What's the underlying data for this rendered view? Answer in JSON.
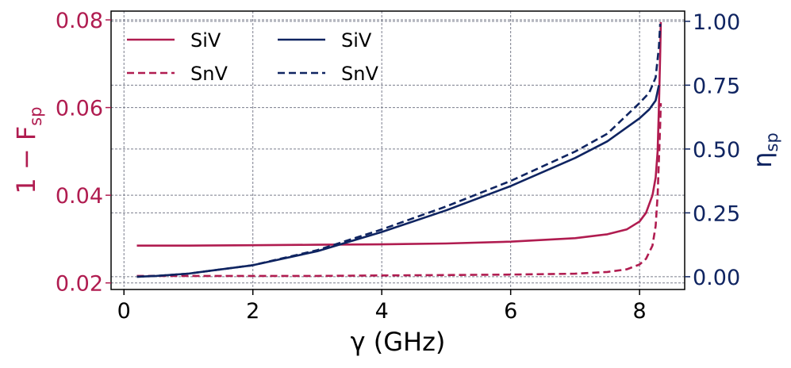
{
  "chart_data": {
    "type": "line",
    "xlabel": "γ (GHz)",
    "ylabel_left": "1 − F",
    "ylabel_left_sub": "sp",
    "ylabel_right": "η",
    "ylabel_right_sub": "sp",
    "xlim": [
      -0.2,
      8.7
    ],
    "ylim_left": [
      0.0185,
      0.082
    ],
    "ylim_right": [
      -0.05,
      1.04
    ],
    "xticks": [
      "0",
      "2",
      "4",
      "6",
      "8"
    ],
    "yticks_left": [
      "0.02",
      "0.04",
      "0.06",
      "0.08"
    ],
    "yticks_right": [
      "0.00",
      "0.25",
      "0.50",
      "0.75",
      "1.00"
    ],
    "grid": true,
    "colors": {
      "left": "#b01c50",
      "right": "#0f2461"
    },
    "legend": {
      "position": "top-left",
      "columns": [
        [
          {
            "label": "SiV",
            "style": "solid",
            "color": "#b01c50"
          },
          {
            "label": "SnV",
            "style": "dashed",
            "color": "#b01c50"
          }
        ],
        [
          {
            "label": "SiV",
            "style": "solid",
            "color": "#0f2461"
          },
          {
            "label": "SnV",
            "style": "dashed",
            "color": "#0f2461"
          }
        ]
      ]
    },
    "series": [
      {
        "name": "SiV",
        "axis": "left",
        "style": "solid",
        "color": "#b01c50",
        "x": [
          0.2,
          1,
          2,
          3,
          4,
          5,
          6,
          7,
          7.5,
          7.8,
          8.0,
          8.1,
          8.2,
          8.25,
          8.28,
          8.3,
          8.32,
          8.33
        ],
        "y": [
          0.0285,
          0.0285,
          0.0286,
          0.0287,
          0.0288,
          0.029,
          0.0294,
          0.0302,
          0.0311,
          0.0322,
          0.034,
          0.036,
          0.04,
          0.044,
          0.05,
          0.06,
          0.072,
          0.0795
        ]
      },
      {
        "name": "SnV",
        "axis": "left",
        "style": "dashed",
        "color": "#b01c50",
        "x": [
          0.2,
          1,
          2,
          3,
          4,
          5,
          6,
          7,
          7.5,
          7.8,
          8.0,
          8.1,
          8.2,
          8.25,
          8.28,
          8.3,
          8.32,
          8.33
        ],
        "y": [
          0.0216,
          0.0216,
          0.0216,
          0.0216,
          0.0217,
          0.0218,
          0.0219,
          0.0221,
          0.0225,
          0.0231,
          0.0242,
          0.0255,
          0.0285,
          0.033,
          0.04,
          0.048,
          0.056,
          0.061
        ]
      },
      {
        "name": "SiV",
        "axis": "right",
        "style": "solid",
        "color": "#0f2461",
        "x": [
          0.2,
          0.5,
          1,
          2,
          3,
          4,
          5,
          6,
          7,
          7.5,
          8.0,
          8.15,
          8.25,
          8.3
        ],
        "y": [
          0.0,
          0.003,
          0.012,
          0.045,
          0.1,
          0.175,
          0.26,
          0.355,
          0.465,
          0.53,
          0.62,
          0.655,
          0.69,
          0.75
        ]
      },
      {
        "name": "SnV",
        "axis": "right",
        "style": "dashed",
        "color": "#0f2461",
        "x": [
          0.2,
          0.5,
          1,
          2,
          3,
          4,
          5,
          6,
          7,
          7.5,
          8.0,
          8.15,
          8.25,
          8.3,
          8.32
        ],
        "y": [
          0.0,
          0.003,
          0.012,
          0.045,
          0.104,
          0.185,
          0.275,
          0.375,
          0.49,
          0.56,
          0.68,
          0.72,
          0.78,
          0.9,
          0.99
        ]
      }
    ]
  }
}
